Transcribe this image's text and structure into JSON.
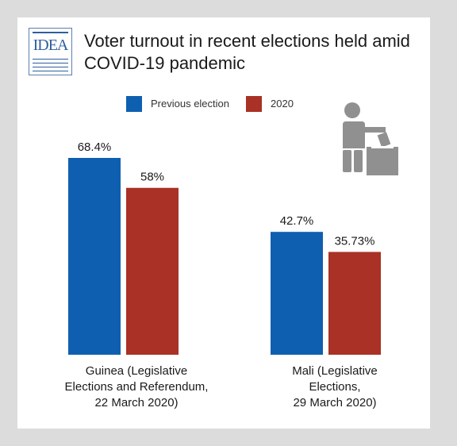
{
  "title": "Voter turnout in recent elections held amid COVID-19 pandemic",
  "logo_text": "IDEA",
  "colors": {
    "previous": "#0f5fb0",
    "current": "#a93125",
    "icon": "#909090"
  },
  "icon": "voter-ballot-box-icon",
  "chart_data": {
    "type": "bar",
    "title": "Voter turnout in recent elections held amid COVID-19 pandemic",
    "categories": [
      "Guinea (Legislative\nElections and Referendum,\n22 March 2020)",
      "Mali (Legislative\nElections,\n29 March 2020)"
    ],
    "series": [
      {
        "name": "Previous election",
        "values": [
          68.4,
          42.7
        ],
        "labels": [
          "68.4%",
          "42.7%"
        ]
      },
      {
        "name": "2020",
        "values": [
          58,
          35.73
        ],
        "labels": [
          "58%",
          "35.73%"
        ]
      }
    ],
    "legend_position": "top",
    "grid": false,
    "ylim": [
      0,
      100
    ]
  }
}
